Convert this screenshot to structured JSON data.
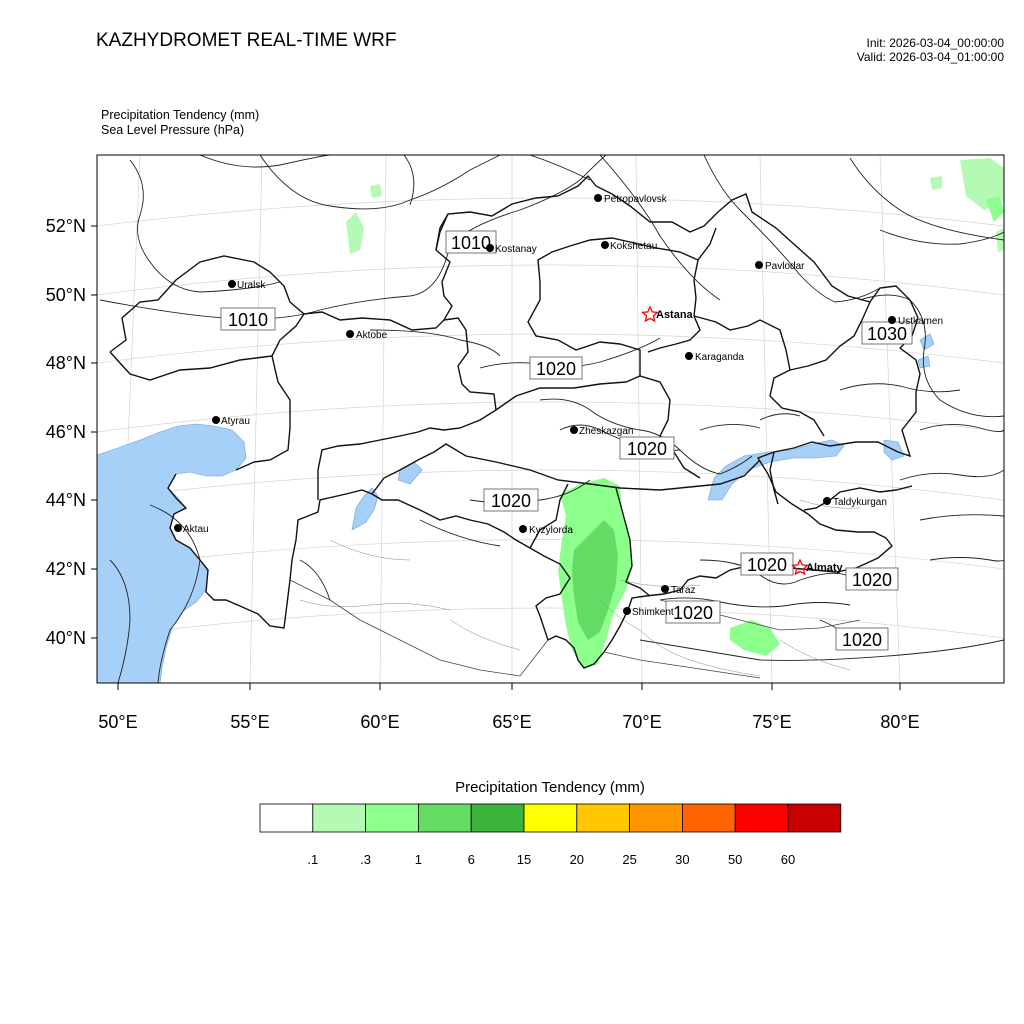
{
  "header": {
    "title": "KAZHYDROMET REAL-TIME WRF",
    "init": "Init: 2026-03-04_00:00:00",
    "valid": "Valid: 2026-03-04_01:00:00",
    "subtitle1": "Precipitation Tendency   (mm)",
    "subtitle2": "Sea Level Pressure   (hPa)"
  },
  "axes": {
    "lat_labels": [
      "52°N",
      "50°N",
      "48°N",
      "46°N",
      "44°N",
      "42°N",
      "40°N"
    ],
    "lon_labels": [
      "50°E",
      "55°E",
      "60°E",
      "65°E",
      "70°E",
      "75°E",
      "80°E"
    ]
  },
  "cities": [
    {
      "name": "Petropavlovsk",
      "bold": false,
      "star": false
    },
    {
      "name": "Kostanay",
      "bold": false,
      "star": false
    },
    {
      "name": "Kokshetau",
      "bold": false,
      "star": false
    },
    {
      "name": "Pavlodar",
      "bold": false,
      "star": false
    },
    {
      "name": "Uralsk",
      "bold": false,
      "star": false
    },
    {
      "name": "Astana",
      "bold": true,
      "star": true
    },
    {
      "name": "Ustkamen",
      "bold": false,
      "star": false
    },
    {
      "name": "Aktobe",
      "bold": false,
      "star": false
    },
    {
      "name": "Karaganda",
      "bold": false,
      "star": false
    },
    {
      "name": "Atyrau",
      "bold": false,
      "star": false
    },
    {
      "name": "Zheskazgan",
      "bold": false,
      "star": false
    },
    {
      "name": "Taldykurgan",
      "bold": false,
      "star": false
    },
    {
      "name": "Aktau",
      "bold": false,
      "star": false
    },
    {
      "name": "Kyzylorda",
      "bold": false,
      "star": false
    },
    {
      "name": "Almaty",
      "bold": true,
      "star": true
    },
    {
      "name": "Taraz",
      "bold": false,
      "star": false
    },
    {
      "name": "Shimkent",
      "bold": false,
      "star": false
    }
  ],
  "isobar_labels": [
    "1010",
    "1010",
    "1030",
    "1020",
    "1020",
    "1020",
    "1020",
    "1020",
    "1020",
    "1020"
  ],
  "legend": {
    "title": "Precipitation Tendency (mm)",
    "colors": [
      "#ffffff",
      "#b4fab4",
      "#8cff8c",
      "#64dc64",
      "#3cb43c",
      "#ffff00",
      "#ffc800",
      "#ff9600",
      "#ff6400",
      "#ff0000",
      "#c80000"
    ],
    "labels": [
      ".1",
      ".3",
      "1",
      "6",
      "15",
      "20",
      "25",
      "30",
      "50",
      "60"
    ]
  },
  "colors": {
    "water": "#a7d0f8",
    "star": "#ff0000"
  }
}
